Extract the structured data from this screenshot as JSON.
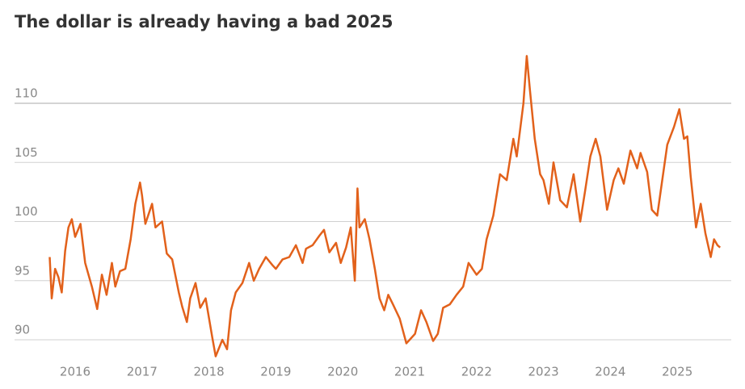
{
  "chart_data": {
    "type": "line",
    "title": "The dollar is already having a bad 2025",
    "x": [
      2015.62,
      2015.65,
      2015.7,
      2015.75,
      2015.8,
      2015.85,
      2015.9,
      2015.95,
      2016.0,
      2016.08,
      2016.15,
      2016.25,
      2016.33,
      2016.4,
      2016.47,
      2016.55,
      2016.6,
      2016.67,
      2016.75,
      2016.83,
      2016.9,
      2016.97,
      2017.0,
      2017.05,
      2017.15,
      2017.2,
      2017.3,
      2017.37,
      2017.45,
      2017.55,
      2017.6,
      2017.67,
      2017.72,
      2017.8,
      2017.87,
      2017.95,
      2018.05,
      2018.1,
      2018.2,
      2018.27,
      2018.33,
      2018.4,
      2018.5,
      2018.6,
      2018.67,
      2018.75,
      2018.85,
      2018.95,
      2019.0,
      2019.1,
      2019.2,
      2019.3,
      2019.4,
      2019.45,
      2019.55,
      2019.65,
      2019.72,
      2019.8,
      2019.9,
      2019.97,
      2020.05,
      2020.12,
      2020.18,
      2020.22,
      2020.25,
      2020.33,
      2020.4,
      2020.48,
      2020.55,
      2020.62,
      2020.68,
      2020.75,
      2020.85,
      2020.95,
      2021.0,
      2021.08,
      2021.17,
      2021.25,
      2021.35,
      2021.42,
      2021.5,
      2021.6,
      2021.7,
      2021.8,
      2021.88,
      2022.0,
      2022.08,
      2022.15,
      2022.25,
      2022.35,
      2022.45,
      2022.55,
      2022.6,
      2022.7,
      2022.75,
      2022.8,
      2022.87,
      2022.95,
      2023.0,
      2023.08,
      2023.15,
      2023.25,
      2023.35,
      2023.45,
      2023.5,
      2023.55,
      2023.62,
      2023.7,
      2023.78,
      2023.85,
      2023.95,
      2024.05,
      2024.12,
      2024.2,
      2024.3,
      2024.4,
      2024.45,
      2024.55,
      2024.62,
      2024.7,
      2024.75,
      2024.85,
      2024.95,
      2025.03,
      2025.1,
      2025.15,
      2025.2,
      2025.28,
      2025.35,
      2025.42,
      2025.5,
      2025.55,
      2025.6,
      2025.64
    ],
    "series": [
      {
        "color": "#e2611b",
        "values": [
          97.0,
          93.5,
          96.0,
          95.3,
          94.0,
          97.5,
          99.5,
          100.2,
          98.7,
          99.8,
          96.5,
          94.5,
          92.6,
          95.5,
          93.8,
          96.5,
          94.5,
          95.8,
          96.0,
          98.5,
          101.5,
          103.3,
          102.2,
          99.8,
          101.5,
          99.5,
          100.0,
          97.3,
          96.8,
          94.0,
          92.8,
          91.5,
          93.5,
          94.8,
          92.7,
          93.5,
          90.2,
          88.6,
          90.0,
          89.2,
          92.5,
          94.0,
          94.8,
          96.5,
          95.0,
          96.0,
          97.0,
          96.3,
          96.0,
          96.8,
          97.0,
          98.0,
          96.5,
          97.7,
          98.0,
          98.8,
          99.3,
          97.4,
          98.2,
          96.5,
          97.8,
          99.5,
          95.0,
          102.8,
          99.5,
          100.2,
          98.5,
          96.0,
          93.5,
          92.5,
          93.8,
          93.0,
          91.8,
          89.7,
          90.0,
          90.5,
          92.5,
          91.5,
          89.9,
          90.5,
          92.7,
          93.0,
          93.8,
          94.5,
          96.5,
          95.5,
          96.0,
          98.5,
          100.5,
          104.0,
          103.5,
          107.0,
          105.5,
          110.0,
          114.0,
          111.0,
          107.0,
          104.0,
          103.5,
          101.5,
          105.0,
          101.8,
          101.2,
          104.0,
          102.0,
          100.0,
          102.5,
          105.5,
          107.0,
          105.5,
          101.0,
          103.5,
          104.5,
          103.2,
          106.0,
          104.5,
          105.8,
          104.2,
          101.0,
          100.5,
          102.5,
          106.5,
          108.0,
          109.5,
          107.0,
          107.2,
          103.8,
          99.5,
          101.5,
          99.0,
          97.0,
          98.5,
          98.0,
          97.8
        ]
      }
    ],
    "xlim": [
      2015.1,
      2026.0
    ],
    "xticks": [
      2016,
      2017,
      2018,
      2019,
      2020,
      2021,
      2022,
      2023,
      2024,
      2025
    ],
    "ylim": [
      88.5,
      115
    ],
    "yticks": [
      90,
      95,
      100,
      105,
      110
    ],
    "grid": true
  }
}
